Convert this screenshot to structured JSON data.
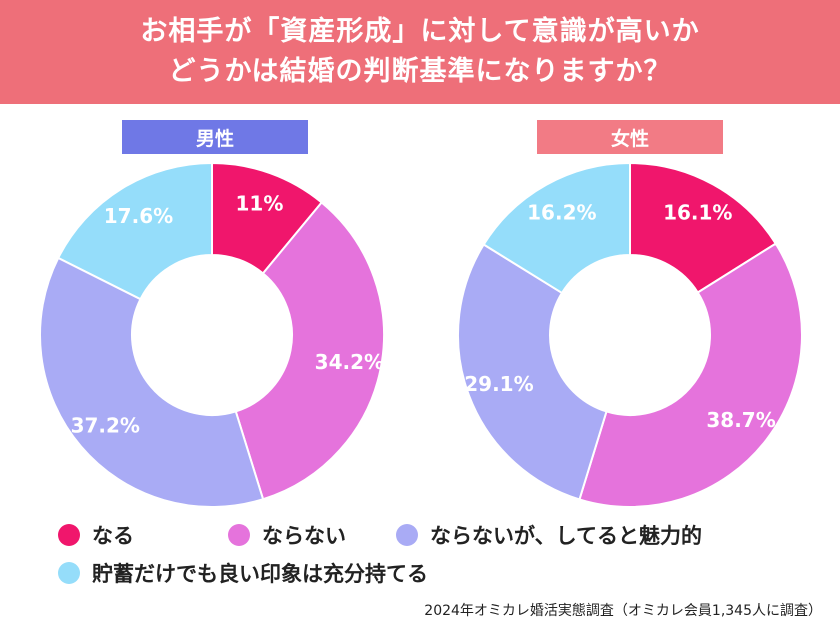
{
  "header": {
    "line1": "お相手が「資産形成」に対して意識が高いか",
    "line2": "どうかは結婚の判断基準になりますか？",
    "bg_color": "#ee6f79"
  },
  "chart_data": [
    {
      "type": "pie",
      "title": "男性",
      "title_bg": "#6f78e6",
      "labels": [
        "なる",
        "ならない",
        "ならないが、してると魅力的",
        "貯蓄だけでも良い印象は充分持てる"
      ],
      "values": [
        11,
        34.2,
        37.2,
        17.6
      ],
      "value_labels": [
        "11%",
        "34.2%",
        "37.2%",
        "17.6%"
      ],
      "colors": [
        "#f0166c",
        "#e573dc",
        "#a9abf5",
        "#95ddfa"
      ]
    },
    {
      "type": "pie",
      "title": "女性",
      "title_bg": "#f27b85",
      "labels": [
        "なる",
        "ならない",
        "ならないが、してると魅力的",
        "貯蓄だけでも良い印象は充分持てる"
      ],
      "values": [
        16.1,
        38.7,
        29.1,
        16.2
      ],
      "value_labels": [
        "16.1%",
        "38.7%",
        "29.1%",
        "16.2%"
      ],
      "colors": [
        "#f0166c",
        "#e573dc",
        "#a9abf5",
        "#95ddfa"
      ]
    }
  ],
  "legend": [
    {
      "label": "なる",
      "color": "#f0166c"
    },
    {
      "label": "ならない",
      "color": "#e573dc"
    },
    {
      "label": "ならないが、してると魅力的",
      "color": "#a9abf5"
    },
    {
      "label": "貯蓄だけでも良い印象は充分持てる",
      "color": "#95ddfa"
    }
  ],
  "source": "2024年オミカレ婚活実態調査（オミカレ会員1,345人に調査）"
}
